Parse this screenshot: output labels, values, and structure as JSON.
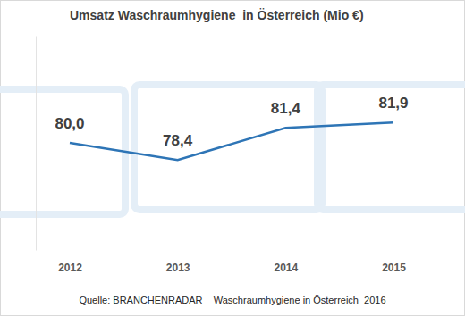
{
  "chart_data": {
    "type": "line",
    "title": "Umsatz Waschraumhygiene  in Österreich (Mio €)",
    "categories": [
      "2012",
      "2013",
      "2014",
      "2015"
    ],
    "values": [
      80.0,
      78.4,
      81.4,
      81.9
    ],
    "value_labels": [
      "80,0",
      "78,4",
      "81,4",
      "81,9"
    ],
    "color": "#2e75b6",
    "ylim": [
      70,
      90
    ],
    "data_labels": true,
    "tick_labels": "x",
    "source": "Quelle: BRANCHENRADAR    Waschraumhygiene in Österreich  2016"
  }
}
